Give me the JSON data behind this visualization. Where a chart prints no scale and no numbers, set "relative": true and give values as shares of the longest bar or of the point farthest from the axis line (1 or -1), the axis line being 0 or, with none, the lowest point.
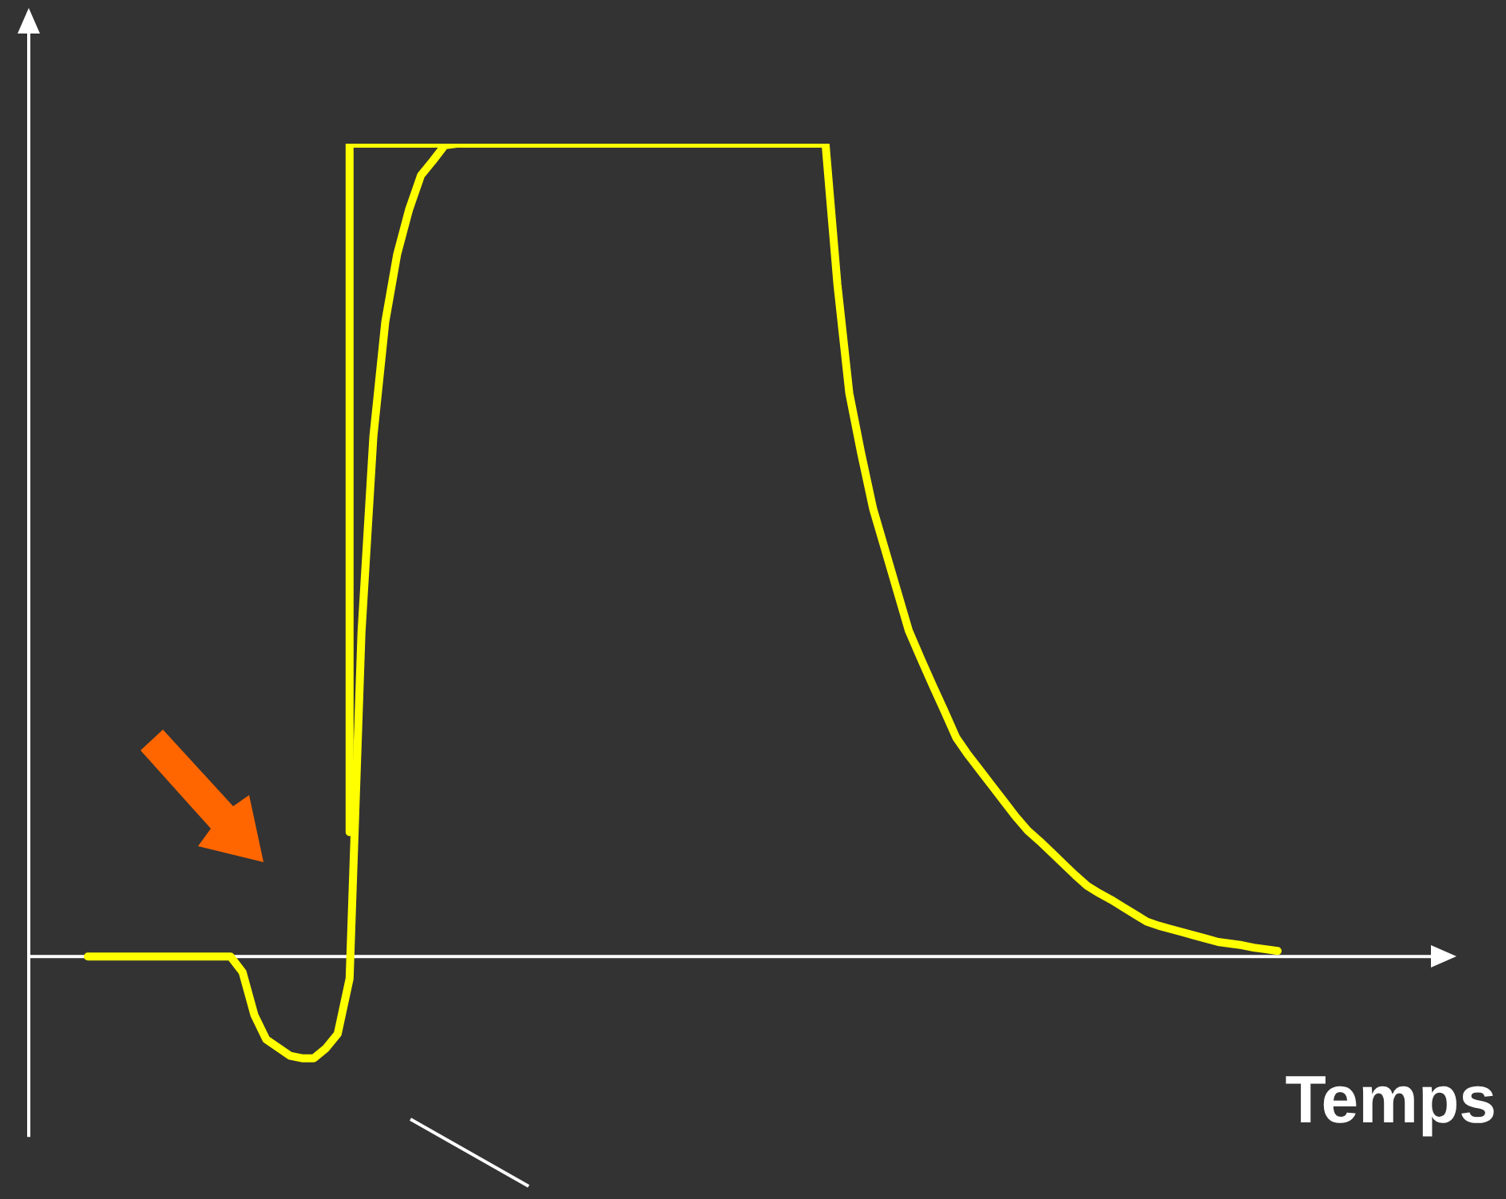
{
  "chart_data": {
    "type": "line",
    "relative": true,
    "xlabel": "Temps",
    "marker": "none",
    "line_style": "solid",
    "categories": [
      null,
      null,
      null,
      null,
      null,
      null,
      null,
      null,
      null,
      null,
      null,
      null,
      null,
      null,
      null,
      null,
      null,
      null,
      null,
      null,
      null,
      null,
      null,
      null,
      null,
      null,
      null,
      null,
      null,
      null,
      null,
      null,
      null,
      null,
      null,
      null,
      null,
      null,
      null,
      null,
      null,
      null,
      null,
      null,
      null,
      null,
      null,
      null,
      null,
      null,
      null,
      null,
      null,
      null,
      null,
      null,
      null,
      null,
      null,
      null,
      null,
      null,
      null,
      null,
      null,
      null,
      null,
      null,
      null,
      null,
      null,
      null,
      null,
      null,
      null,
      null,
      null,
      null,
      null,
      null,
      null,
      null,
      null,
      null,
      null,
      null,
      null,
      null,
      null,
      null,
      null,
      null,
      null,
      null,
      null,
      null,
      null,
      null,
      null,
      null,
      null
    ],
    "series": [
      {
        "color": "#ffff00",
        "values": [
          0,
          0,
          0,
          0,
          0,
          0,
          0,
          0,
          0,
          0,
          0,
          0,
          0,
          -0.019,
          -0.072,
          -0.102,
          -0.112,
          -0.122,
          -0.125,
          -0.125,
          -0.113,
          -0.095,
          -0.027,
          0.399,
          0.64,
          0.781,
          0.864,
          0.919,
          0.961,
          0.979,
          0.998,
          1,
          1,
          1,
          1,
          1,
          1,
          1,
          1,
          1,
          1,
          1,
          1,
          1,
          1,
          1,
          1,
          1,
          1,
          1,
          1,
          1,
          1,
          1,
          1,
          1,
          1,
          1,
          1,
          1,
          1,
          1,
          1,
          0.827,
          0.693,
          0.619,
          0.551,
          0.501,
          0.451,
          0.401,
          0.367,
          0.334,
          0.302,
          0.269,
          0.248,
          0.229,
          0.21,
          0.191,
          0.172,
          0.155,
          0.142,
          0.128,
          0.114,
          0.1,
          0.087,
          0.078,
          0.07,
          0.061,
          0.052,
          0.043,
          0.038,
          0.034,
          0.03,
          0.026,
          0.022,
          0.018,
          0.016,
          0.014,
          0.011,
          0.009,
          0.007
        ]
      },
      {
        "type": "step",
        "color": "#ffff00",
        "values": [
          null,
          null,
          null,
          null,
          null,
          null,
          null,
          null,
          null,
          null,
          null,
          null,
          null,
          null,
          null,
          null,
          null,
          null,
          null,
          null,
          null,
          null,
          0.153,
          null,
          null,
          null,
          null,
          null,
          null,
          null,
          1,
          null,
          null,
          null,
          null,
          null,
          null,
          null,
          null,
          null,
          null,
          null,
          null,
          null,
          null,
          null,
          null,
          null,
          null,
          null,
          null,
          null,
          null,
          null,
          null,
          null,
          null,
          null,
          null,
          null,
          null,
          null,
          null,
          null,
          null,
          null,
          null,
          null,
          null,
          null,
          null,
          null,
          null,
          null,
          null,
          null,
          null,
          null,
          null,
          null,
          null,
          null,
          null,
          null,
          null,
          null,
          null,
          null,
          null,
          null,
          null,
          null,
          null,
          null,
          null,
          null,
          null,
          null,
          null,
          null,
          null
        ]
      }
    ]
  }
}
